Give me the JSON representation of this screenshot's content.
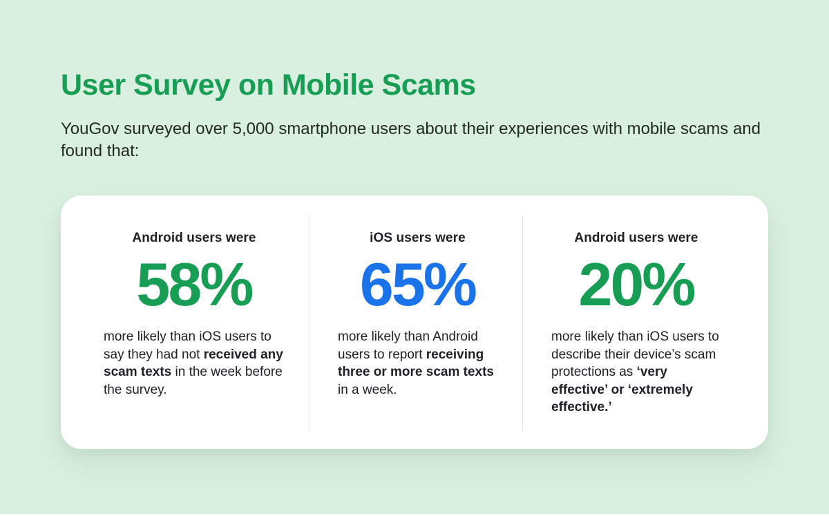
{
  "page": {
    "title": "User Survey on Mobile Scams",
    "subtitle": "YouGov surveyed over 5,000 smartphone users about their experiences with mobile scams and found that:"
  },
  "colors": {
    "background": "#d9efdf",
    "title_green": "#189e54",
    "stat_green": "#189e54",
    "stat_blue": "#1a73e8",
    "body_text": "#202124",
    "card_background": "#ffffff",
    "divider": "#e3e6e4"
  },
  "stats": [
    {
      "header": "Android users were",
      "value": "58%",
      "value_color": "#189e54",
      "desc_pre": "more likely than iOS users to say they had not ",
      "desc_bold": "received any scam texts",
      "desc_post": " in the week before the survey."
    },
    {
      "header": "iOS users were",
      "value": "65%",
      "value_color": "#1a73e8",
      "desc_pre": "more likely than Android users to report ",
      "desc_bold": "receiving three or more scam texts",
      "desc_post": " in a week."
    },
    {
      "header": "Android users were",
      "value": "20%",
      "value_color": "#189e54",
      "desc_pre": "more likely than iOS users to describe their device’s scam protections as ",
      "desc_bold": "‘very effective’ or ‘extremely effective.’",
      "desc_post": ""
    }
  ],
  "chart_data": {
    "type": "table",
    "title": "User Survey on Mobile Scams",
    "subtitle": "YouGov surveyed over 5,000 smartphone users about their experiences with mobile scams and found that:",
    "columns": [
      "group",
      "percent",
      "finding"
    ],
    "rows": [
      [
        "Android users",
        58,
        "more likely than iOS users to say they had not received any scam texts in the week before the survey."
      ],
      [
        "iOS users",
        65,
        "more likely than Android users to report receiving three or more scam texts in a week."
      ],
      [
        "Android users",
        20,
        "more likely than iOS users to describe their device’s scam protections as ‘very effective’ or ‘extremely effective.’"
      ]
    ],
    "unit": "%"
  }
}
